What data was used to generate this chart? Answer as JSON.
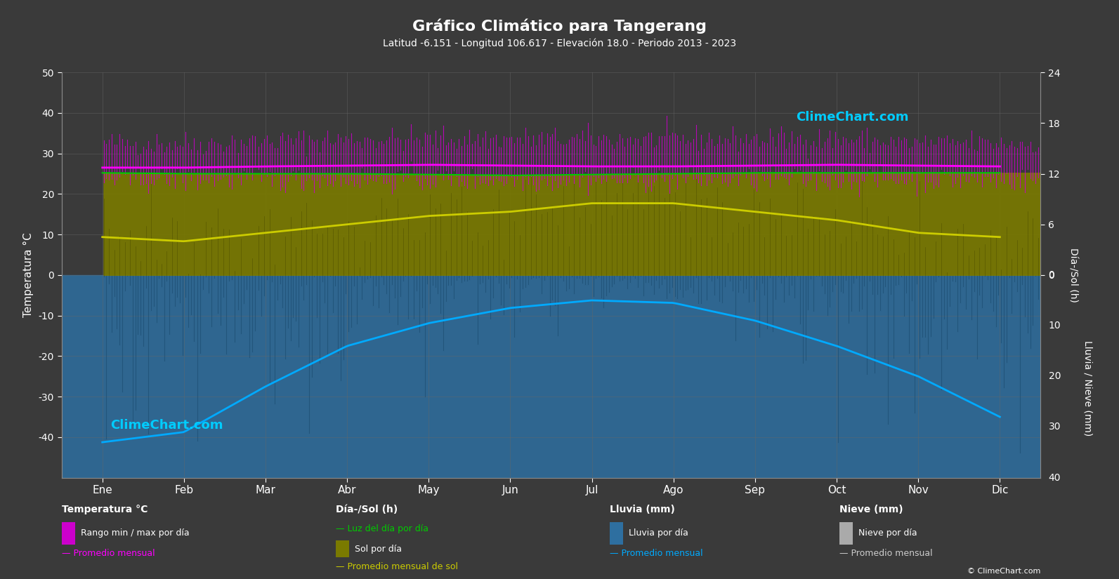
{
  "title": "Gráfico Climático para Tangerang",
  "subtitle": "Latitud -6.151 - Longitud 106.617 - Elevación 18.0 - Periodo 2013 - 2023",
  "bg_color": "#3a3a3a",
  "months": [
    "Ene",
    "Feb",
    "Mar",
    "Abr",
    "May",
    "Jun",
    "Jul",
    "Ago",
    "Sep",
    "Oct",
    "Nov",
    "Dic"
  ],
  "temp_ylim": [
    -50,
    50
  ],
  "temp_avg": [
    26.5,
    26.5,
    26.8,
    27.0,
    27.2,
    27.0,
    26.8,
    26.8,
    27.0,
    27.2,
    27.0,
    26.8
  ],
  "daily_temp_max": [
    32.5,
    32.5,
    33.0,
    33.5,
    33.5,
    33.5,
    33.5,
    33.5,
    33.5,
    33.5,
    32.5,
    32.5
  ],
  "daily_temp_min": [
    23.5,
    23.5,
    23.5,
    23.5,
    23.5,
    23.5,
    23.5,
    23.5,
    23.5,
    23.5,
    23.5,
    23.5
  ],
  "daylight_avg": [
    12.1,
    12.0,
    12.0,
    12.0,
    11.9,
    11.8,
    11.9,
    12.0,
    12.1,
    12.1,
    12.1,
    12.1
  ],
  "sun_hours_avg": [
    4.5,
    4.0,
    5.0,
    6.0,
    7.0,
    7.5,
    8.5,
    8.5,
    7.5,
    6.5,
    5.0,
    4.5
  ],
  "rain_monthly_mm": [
    330,
    310,
    220,
    140,
    95,
    65,
    50,
    55,
    90,
    140,
    200,
    280
  ],
  "rain_scale_max_mm": 400,
  "rain_scale_label_max": 40,
  "temp_band_color": "#cc00cc",
  "sun_fill_color": "#7a7a00",
  "daylight_color": "#00cc00",
  "sun_avg_color": "#cccc00",
  "temp_avg_color": "#ff00ff",
  "rain_color": "#2e6fa0",
  "rain_avg_color": "#00aaff",
  "snow_color": "#aaaaaa",
  "snow_avg_color": "#cccccc",
  "grid_color": "#666666",
  "text_color": "#ffffff",
  "watermark_color": "#00ccff",
  "sol_axis_ticks": [
    0,
    6,
    12,
    18,
    24
  ],
  "rain_axis_ticks": [
    0,
    10,
    20,
    30,
    40
  ],
  "temp_axis_ticks": [
    -40,
    -30,
    -20,
    -10,
    0,
    10,
    20,
    30,
    40,
    50
  ]
}
